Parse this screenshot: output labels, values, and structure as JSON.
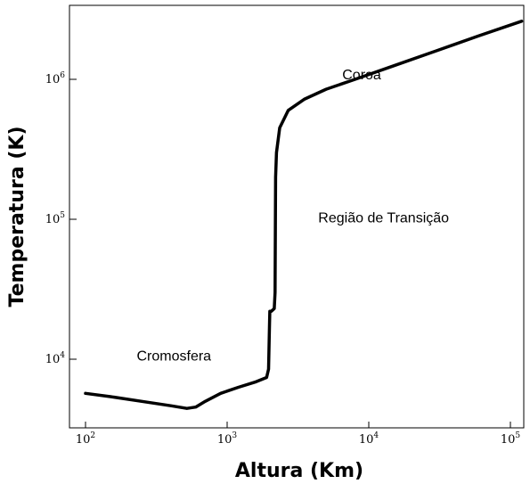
{
  "chart_data": {
    "type": "line",
    "xlabel": "Altura (Km)",
    "ylabel": "Temperatura (K)",
    "xscale": "log",
    "yscale": "log",
    "xlim": [
      80,
      120000
    ],
    "ylim": [
      4000,
      3000000
    ],
    "x_ticks": [
      {
        "value": 100,
        "base": "10",
        "exp": "2"
      },
      {
        "value": 1000,
        "base": "10",
        "exp": "3"
      },
      {
        "value": 10000,
        "base": "10",
        "exp": "4"
      },
      {
        "value": 100000,
        "base": "10",
        "exp": "5"
      }
    ],
    "y_ticks": [
      {
        "value": 10000,
        "base": "10",
        "exp": "4"
      },
      {
        "value": 100000,
        "base": "10",
        "exp": "5"
      },
      {
        "value": 1000000,
        "base": "10",
        "exp": "6"
      }
    ],
    "series": [
      {
        "color": "#000000",
        "points": [
          [
            100,
            5700
          ],
          [
            150,
            5400
          ],
          [
            250,
            5000
          ],
          [
            400,
            4650
          ],
          [
            520,
            4450
          ],
          [
            600,
            4550
          ],
          [
            700,
            5000
          ],
          [
            900,
            5700
          ],
          [
            1200,
            6300
          ],
          [
            1600,
            6900
          ],
          [
            1900,
            7400
          ],
          [
            1960,
            8500
          ],
          [
            1990,
            17000
          ],
          [
            2000,
            22000
          ],
          [
            2050,
            22000
          ],
          [
            2150,
            23000
          ],
          [
            2180,
            30000
          ],
          [
            2200,
            200000
          ],
          [
            2230,
            300000
          ],
          [
            2350,
            450000
          ],
          [
            2700,
            600000
          ],
          [
            3500,
            720000
          ],
          [
            5000,
            850000
          ],
          [
            8000,
            1000000
          ],
          [
            15000,
            1250000
          ],
          [
            30000,
            1600000
          ],
          [
            60000,
            2050000
          ],
          [
            120000,
            2600000
          ]
        ]
      }
    ],
    "annotations": [
      {
        "text": "Coroa",
        "x": 6500,
        "y": 1000000
      },
      {
        "text": "Região de Transição",
        "x": 4400,
        "y": 95000
      },
      {
        "text": "Cromosfera",
        "x": 230,
        "y": 9800
      }
    ]
  }
}
